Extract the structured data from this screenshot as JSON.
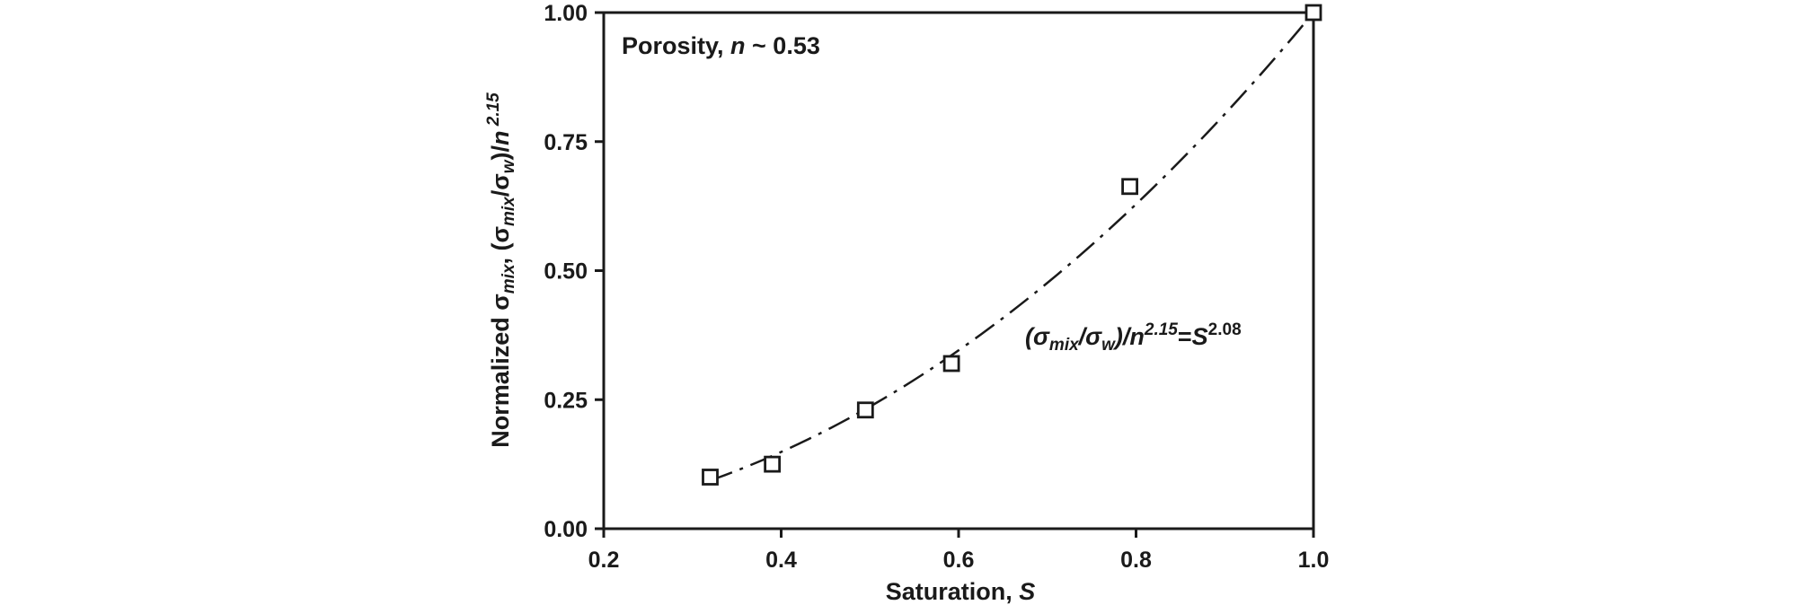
{
  "chart_data": {
    "type": "scatter",
    "xlabel": "Saturation, S",
    "ylabel": "Normalized σmix, (σmix/σw)/n 2.15",
    "xlim": [
      0.2,
      1.0
    ],
    "ylim": [
      0.0,
      1.0
    ],
    "x_ticks": [
      "0.2",
      "0.4",
      "0.6",
      "0.8",
      "1.0"
    ],
    "y_ticks": [
      "0.00",
      "0.25",
      "0.50",
      "0.75",
      "1.00"
    ],
    "grid": false,
    "series": [
      {
        "marker": "open-square",
        "x": [
          0.32,
          0.39,
          0.495,
          0.592,
          0.793,
          1.0
        ],
        "y": [
          0.1,
          0.125,
          0.23,
          0.32,
          0.663,
          1.0
        ]
      }
    ],
    "fit": {
      "style": "dash-dot",
      "exponent": 2.08,
      "x_range": [
        0.32,
        1.0
      ],
      "label": "(σmix/σw)/n2.15=S2.08"
    },
    "annotations": {
      "porosity": "Porosity, n ~ 0.53"
    }
  }
}
